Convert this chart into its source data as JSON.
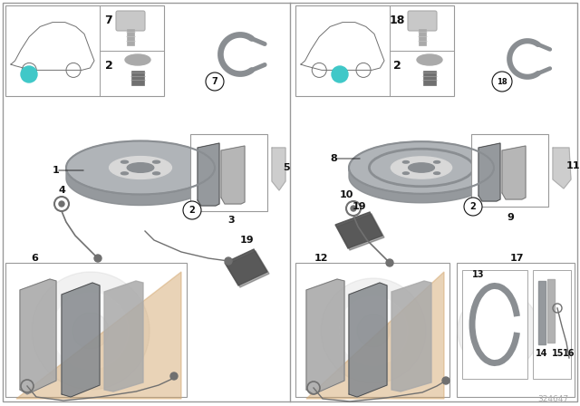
{
  "diagram_id": "324647",
  "bg_color": "#f5f5f5",
  "white": "#ffffff",
  "border_color": "#999999",
  "teal_color": "#40c8c8",
  "text_color": "#111111",
  "light_gray": "#c8c8c8",
  "mid_gray": "#aaaaaa",
  "dark_gray": "#707070",
  "very_dark": "#404040",
  "orange_tan": "#d4a870",
  "disc_color": "#b0b4b8",
  "disc_dark": "#8a8e92",
  "disc_light": "#d8d8d8"
}
